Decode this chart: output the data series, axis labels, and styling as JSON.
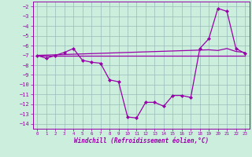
{
  "x_data": [
    0,
    1,
    2,
    3,
    4,
    5,
    6,
    7,
    8,
    9,
    10,
    11,
    12,
    13,
    14,
    15,
    16,
    17,
    18,
    19,
    20,
    21,
    22,
    23
  ],
  "y_main": [
    -7,
    -7.3,
    -7,
    -6.7,
    -6.3,
    -7.5,
    -7.7,
    -7.8,
    -9.5,
    -9.7,
    -13.3,
    -13.4,
    -11.8,
    -11.8,
    -12.2,
    -11.1,
    -11.1,
    -11.3,
    -6.3,
    -5.3,
    -2.2,
    -2.5,
    -6.3,
    -6.8
  ],
  "y_flat": [
    -7,
    -7,
    -7,
    -7,
    -7,
    -7,
    -7,
    -7,
    -7,
    -7,
    -7,
    -7,
    -7,
    -7,
    -7,
    -7,
    -7,
    -7,
    -7,
    -7,
    -7,
    -7,
    -7,
    -7
  ],
  "y_diag": [
    -7,
    -6.97,
    -6.94,
    -6.91,
    -6.88,
    -6.85,
    -6.82,
    -6.79,
    -6.76,
    -6.73,
    -6.7,
    -6.67,
    -6.64,
    -6.61,
    -6.58,
    -6.55,
    -6.52,
    -6.49,
    -6.46,
    -6.43,
    -6.5,
    -6.3,
    -6.6,
    -6.7
  ],
  "color": "#9900aa",
  "bg_color": "#cceedd",
  "grid_color": "#99bbbb",
  "xlabel": "Windchill (Refroidissement éolien,°C)",
  "ylim": [
    -14.5,
    -1.5
  ],
  "xlim": [
    -0.5,
    23.5
  ],
  "yticks": [
    -2,
    -3,
    -4,
    -5,
    -6,
    -7,
    -8,
    -9,
    -10,
    -11,
    -12,
    -13,
    -14
  ],
  "xticks": [
    0,
    1,
    2,
    3,
    4,
    5,
    6,
    7,
    8,
    9,
    10,
    11,
    12,
    13,
    14,
    15,
    16,
    17,
    18,
    19,
    20,
    21,
    22,
    23
  ]
}
